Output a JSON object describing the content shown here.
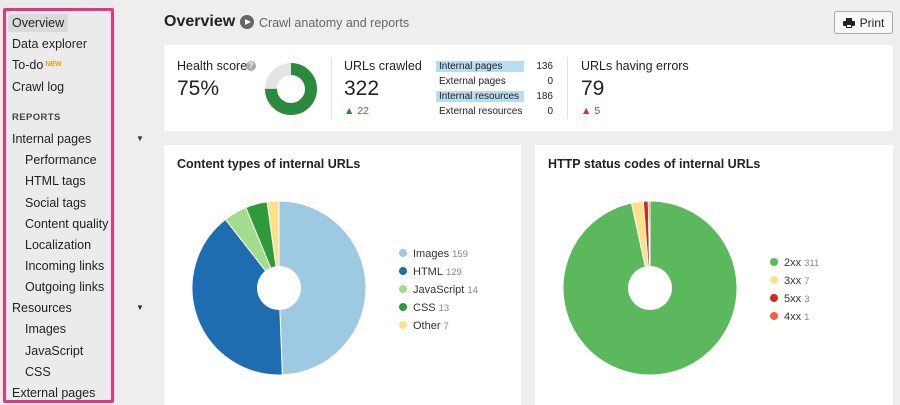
{
  "sidebar": {
    "items": [
      {
        "label": "Overview",
        "active": true
      },
      {
        "label": "Data explorer"
      },
      {
        "label": "To-do",
        "badge": "NEW"
      },
      {
        "label": "Crawl log"
      }
    ],
    "reports_label": "REPORTS",
    "internal_pages": {
      "label": "Internal pages",
      "children": [
        "Performance",
        "HTML tags",
        "Social tags",
        "Content quality",
        "Localization",
        "Incoming links",
        "Outgoing links"
      ]
    },
    "resources": {
      "label": "Resources",
      "children": [
        "Images",
        "JavaScript",
        "CSS"
      ]
    },
    "external_pages": {
      "label": "External pages"
    }
  },
  "header": {
    "title": "Overview",
    "subtitle": "Crawl anatomy and reports",
    "print_label": "Print"
  },
  "stats": {
    "health": {
      "label": "Health score",
      "value": "75%",
      "percent": 75
    },
    "crawled": {
      "label": "URLs crawled",
      "value": "322",
      "delta": "22"
    },
    "breakdown": [
      {
        "label": "Internal pages",
        "value": "136",
        "highlight": true
      },
      {
        "label": "External pages",
        "value": "0",
        "highlight": false
      },
      {
        "label": "Internal resources",
        "value": "186",
        "highlight": true
      },
      {
        "label": "External resources",
        "value": "0",
        "highlight": false
      }
    ],
    "errors": {
      "label": "URLs having errors",
      "value": "79",
      "delta": "5"
    }
  },
  "chart_data": [
    {
      "type": "pie",
      "title": "Content types of internal URLs",
      "categories": [
        "Images",
        "HTML",
        "JavaScript",
        "CSS",
        "Other"
      ],
      "values": [
        159,
        129,
        14,
        13,
        7
      ],
      "colors": [
        "#9ec9e2",
        "#1f6db1",
        "#a3dc8b",
        "#2e9a3a",
        "#fde08a"
      ],
      "legend": "right"
    },
    {
      "type": "pie",
      "title": "HTTP status codes of internal URLs",
      "categories": [
        "2xx",
        "3xx",
        "5xx",
        "4xx"
      ],
      "values": [
        311,
        7,
        3,
        1
      ],
      "colors": [
        "#5cb85c",
        "#fde08a",
        "#d9261c",
        "#e8643c"
      ],
      "legend": "right"
    }
  ],
  "colors": {
    "accent_green": "#2b8a3e",
    "donut_track": "#e4e4e4",
    "sidebar_frame": "#e8337d"
  }
}
